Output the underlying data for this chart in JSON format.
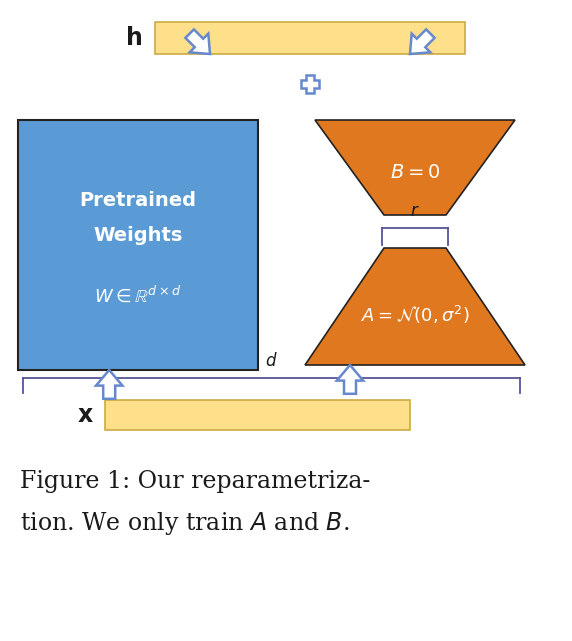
{
  "bg_color": "#ffffff",
  "blue_color": "#5B9BD5",
  "orange_color": "#E07820",
  "yellow_color": "#FFE08A",
  "arrow_color": "#6688CC",
  "text_white": "#ffffff",
  "text_black": "#1a1a1a",
  "figsize": [
    5.72,
    6.41
  ],
  "dpi": 100,
  "h_label": "h",
  "x_label": "x",
  "B_label": "$B = 0$",
  "A_label": "$A = \\mathcal{N}(0, \\sigma^2)$",
  "W_label1": "Pretrained",
  "W_label2": "Weights",
  "W_math": "$W \\in \\mathbb{R}^{d\\times d}$",
  "r_label": "$r$",
  "d_label": "$d$",
  "caption1": "Figure 1: Our reparametriza-",
  "caption2": "tion. We only train $A$ and $B$."
}
